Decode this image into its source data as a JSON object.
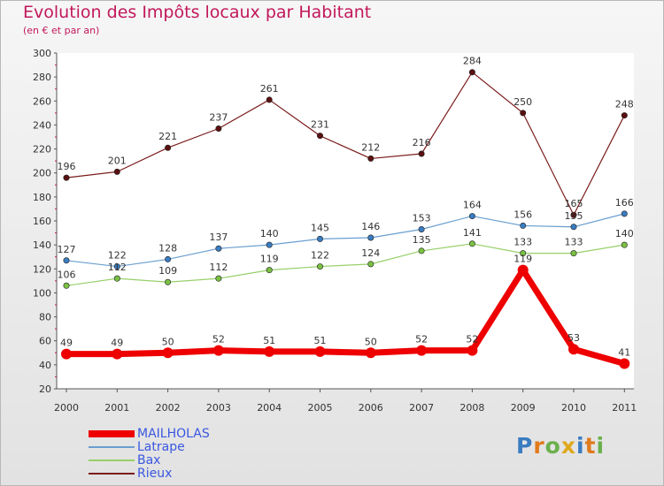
{
  "title": "Evolution des Impôts locaux par Habitant",
  "subtitle": "(en € et par an)",
  "logo_text": "Proxiti",
  "colors": {
    "title": "#c2185b",
    "legend_text": "#3a57e0",
    "axis": "#555555"
  },
  "chart_data": {
    "type": "line",
    "x": [
      "2000",
      "2001",
      "2002",
      "2003",
      "2004",
      "2005",
      "2006",
      "2007",
      "2008",
      "2009",
      "2010",
      "2011"
    ],
    "ylim": [
      20,
      300
    ],
    "yticks": [
      20,
      40,
      60,
      80,
      100,
      120,
      140,
      160,
      180,
      200,
      220,
      240,
      260,
      280,
      300
    ],
    "grid": false,
    "series": [
      {
        "name": "Rieux",
        "color": "#7b1c1c",
        "marker": "#5a1010",
        "values": [
          196,
          201,
          221,
          237,
          261,
          231,
          212,
          216,
          284,
          250,
          165,
          248
        ]
      },
      {
        "name": "Latrape",
        "color": "#6a9ed0",
        "marker": "#3a7cc0",
        "values": [
          127,
          122,
          128,
          137,
          140,
          145,
          146,
          153,
          164,
          156,
          155,
          166
        ]
      },
      {
        "name": "Bax",
        "color": "#96d06a",
        "marker": "#7ac043",
        "values": [
          106,
          112,
          109,
          112,
          119,
          122,
          124,
          135,
          141,
          133,
          133,
          140
        ]
      },
      {
        "name": "MAILHOLAS",
        "color": "#ee0000",
        "marker": "#ee0000",
        "values": [
          49,
          49,
          50,
          52,
          51,
          51,
          50,
          52,
          52,
          119,
          53,
          41
        ]
      }
    ]
  },
  "legend": [
    {
      "label": "MAILHOLAS",
      "color": "#ee0000"
    },
    {
      "label": "Latrape",
      "color": "#6a9ed0"
    },
    {
      "label": "Bax",
      "color": "#96d06a"
    },
    {
      "label": "Rieux",
      "color": "#7b1c1c"
    }
  ]
}
